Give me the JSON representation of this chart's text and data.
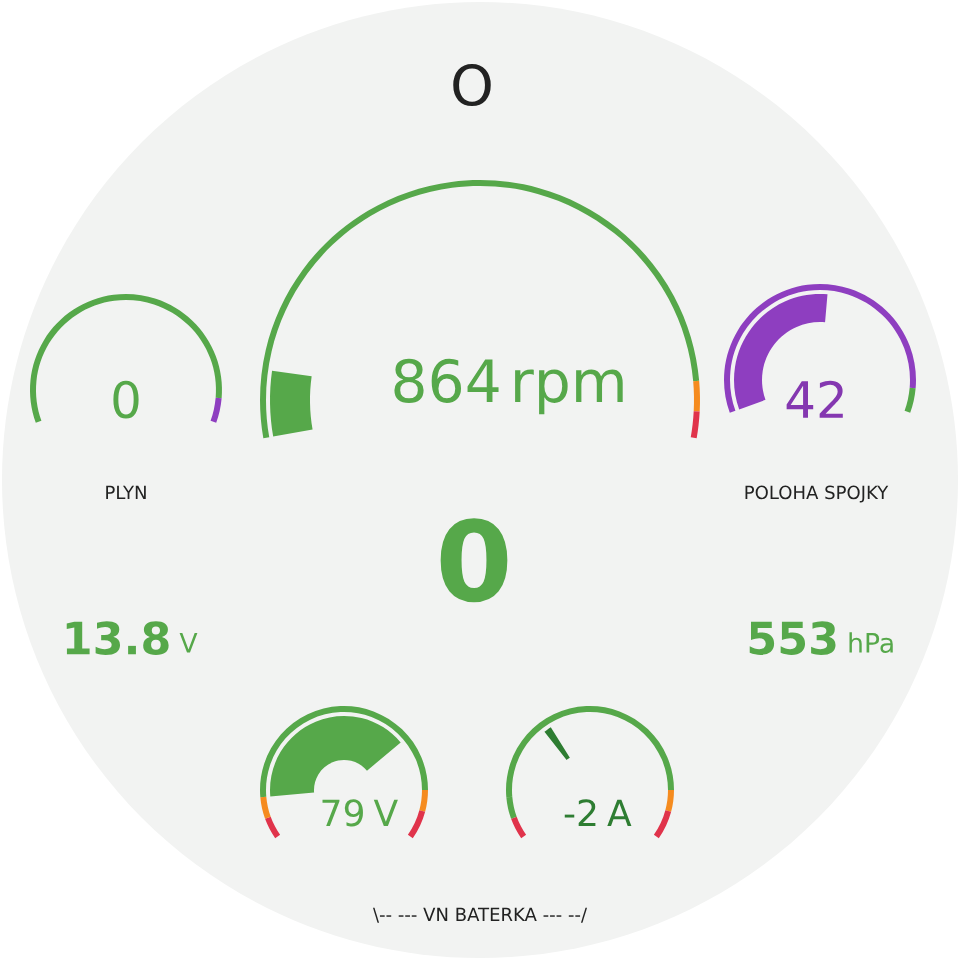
{
  "chart_data": [
    {
      "type": "other",
      "title": "O",
      "annotations": [
        "\\-- --- VN BATERKA --- --/"
      ]
    },
    {
      "type": "other",
      "title": "PLYN",
      "values": [
        0
      ],
      "data_labels": true,
      "color": "#56a84a"
    },
    {
      "type": "other",
      "values": [
        864
      ],
      "data_labels": true,
      "xlabel": "rpm",
      "color": "#56a84a"
    },
    {
      "type": "other",
      "title": "POLOHA SPOJKY",
      "values": [
        42
      ],
      "data_labels": true,
      "color": "#8437b0"
    },
    {
      "type": "other",
      "values": [
        0
      ],
      "data_labels": true,
      "color": "#56a84a"
    },
    {
      "type": "other",
      "values": [
        13.8
      ],
      "data_labels": true,
      "xlabel": "V",
      "color": "#56a84a"
    },
    {
      "type": "other",
      "values": [
        553
      ],
      "data_labels": true,
      "xlabel": "hPa",
      "color": "#56a84a"
    },
    {
      "type": "other",
      "values": [
        79
      ],
      "data_labels": true,
      "xlabel": "V",
      "color": "#56a84a"
    },
    {
      "type": "other",
      "values": [
        -2
      ],
      "data_labels": true,
      "xlabel": "A",
      "color": "#2e7d32"
    }
  ]
}
